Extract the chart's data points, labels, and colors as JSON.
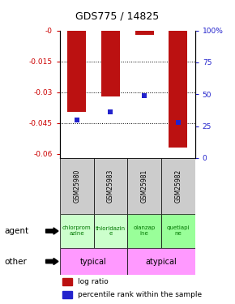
{
  "title": "GDS775 / 14825",
  "samples": [
    "GSM25980",
    "GSM25983",
    "GSM25981",
    "GSM25982"
  ],
  "log_ratios": [
    -0.0395,
    -0.032,
    -0.002,
    -0.057
  ],
  "percentile_ranks": [
    30,
    36,
    49,
    28
  ],
  "ylim": [
    -0.062,
    0.0
  ],
  "yticks": [
    0.0,
    -0.015,
    -0.03,
    -0.045,
    -0.06
  ],
  "ytick_labels": [
    "-0",
    "-0.015",
    "-0.03",
    "-0.045",
    "-0.06"
  ],
  "right_yticks": [
    0,
    25,
    50,
    75,
    100
  ],
  "right_ytick_labels": [
    "0",
    "25",
    "50",
    "75",
    "100%"
  ],
  "agents": [
    "chlorprom\nazine",
    "thioridazin\ne",
    "olanzap\nine",
    "quetiapi\nne"
  ],
  "agent_colors_map": [
    "#ccffcc",
    "#ccffcc",
    "#99ff99",
    "#99ff99"
  ],
  "other_color": "#ff99ff",
  "bar_color": "#bb1111",
  "percentile_color": "#2222cc",
  "bar_width": 0.55,
  "percentile_marker_size": 5,
  "background_color": "#ffffff",
  "plot_bg": "#ffffff",
  "tick_color_left": "#cc0000",
  "tick_color_right": "#2222cc",
  "sample_bg": "#cccccc",
  "agent_text_color": "#007700"
}
